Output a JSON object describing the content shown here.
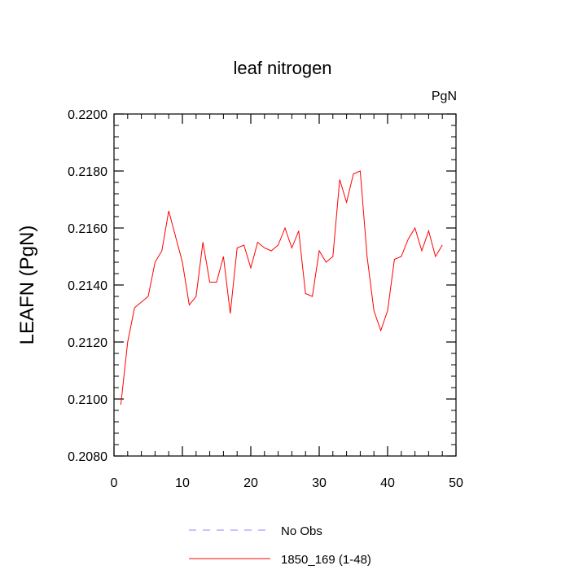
{
  "chart_data": {
    "type": "line",
    "title": "leaf nitrogen",
    "units_label": "PgN",
    "xlabel": "",
    "ylabel": "LEAFN  (PgN)",
    "xlim": [
      0,
      50
    ],
    "ylim": [
      0.208,
      0.22
    ],
    "x_ticks": [
      0,
      10,
      20,
      30,
      40,
      50
    ],
    "y_ticks": [
      0.208,
      0.21,
      0.212,
      0.214,
      0.216,
      0.218,
      0.22
    ],
    "x_tick_labels": [
      "0",
      "10",
      "20",
      "30",
      "40",
      "50"
    ],
    "y_tick_labels": [
      "0.2080",
      "0.2100",
      "0.2120",
      "0.2140",
      "0.2160",
      "0.2180",
      "0.2200"
    ],
    "grid": false,
    "legend_position": "bottom",
    "series": [
      {
        "name": "No Obs",
        "color": "#8888ff",
        "style": "dashed",
        "x": [],
        "values": []
      },
      {
        "name": "1850_169 (1-48)",
        "color": "#ff0000",
        "style": "solid",
        "x": [
          1,
          2,
          3,
          4,
          5,
          6,
          7,
          8,
          9,
          10,
          11,
          12,
          13,
          14,
          15,
          16,
          17,
          18,
          19,
          20,
          21,
          22,
          23,
          24,
          25,
          26,
          27,
          28,
          29,
          30,
          31,
          32,
          33,
          34,
          35,
          36,
          37,
          38,
          39,
          40,
          41,
          42,
          43,
          44,
          45,
          46,
          47,
          48
        ],
        "values": [
          0.2098,
          0.212,
          0.2132,
          0.2134,
          0.2136,
          0.2148,
          0.2152,
          0.2166,
          0.2157,
          0.2148,
          0.2133,
          0.2136,
          0.2155,
          0.2141,
          0.2141,
          0.215,
          0.213,
          0.2153,
          0.2154,
          0.2146,
          0.2155,
          0.2153,
          0.2152,
          0.2154,
          0.216,
          0.2153,
          0.2159,
          0.2137,
          0.2136,
          0.2152,
          0.2148,
          0.215,
          0.2177,
          0.2169,
          0.2179,
          0.218,
          0.215,
          0.2131,
          0.2124,
          0.2131,
          0.2149,
          0.215,
          0.2156,
          0.216,
          0.2152,
          0.2159,
          0.215,
          0.2154
        ]
      }
    ]
  }
}
